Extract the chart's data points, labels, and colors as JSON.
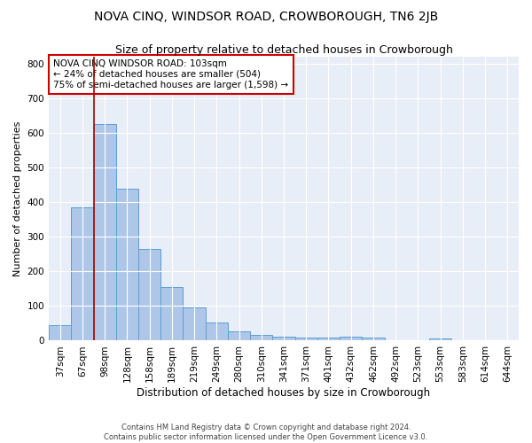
{
  "title": "NOVA CINQ, WINDSOR ROAD, CROWBOROUGH, TN6 2JB",
  "subtitle": "Size of property relative to detached houses in Crowborough",
  "xlabel": "Distribution of detached houses by size in Crowborough",
  "ylabel": "Number of detached properties",
  "categories": [
    "37sqm",
    "67sqm",
    "98sqm",
    "128sqm",
    "158sqm",
    "189sqm",
    "219sqm",
    "249sqm",
    "280sqm",
    "310sqm",
    "341sqm",
    "371sqm",
    "401sqm",
    "432sqm",
    "462sqm",
    "492sqm",
    "523sqm",
    "553sqm",
    "583sqm",
    "614sqm",
    "644sqm"
  ],
  "values": [
    45,
    385,
    625,
    440,
    265,
    155,
    95,
    52,
    28,
    16,
    12,
    10,
    10,
    12,
    10,
    0,
    0,
    7,
    0,
    0,
    0
  ],
  "bar_color": "#aec6e8",
  "bar_edge_color": "#5a9fd4",
  "vline_index": 2,
  "vline_color": "#aa0000",
  "annotation_line1": "NOVA CINQ WINDSOR ROAD: 103sqm",
  "annotation_line2": "← 24% of detached houses are smaller (504)",
  "annotation_line3": "75% of semi-detached houses are larger (1,598) →",
  "annotation_box_color": "#ffffff",
  "annotation_box_edgecolor": "#cc0000",
  "ylim": [
    0,
    820
  ],
  "yticks": [
    0,
    100,
    200,
    300,
    400,
    500,
    600,
    700,
    800
  ],
  "bg_color": "#e8eef8",
  "footer": "Contains HM Land Registry data © Crown copyright and database right 2024.\nContains public sector information licensed under the Open Government Licence v3.0.",
  "title_fontsize": 10,
  "subtitle_fontsize": 9,
  "xlabel_fontsize": 8.5,
  "ylabel_fontsize": 8,
  "annotation_fontsize": 7.5,
  "tick_fontsize": 7.5
}
